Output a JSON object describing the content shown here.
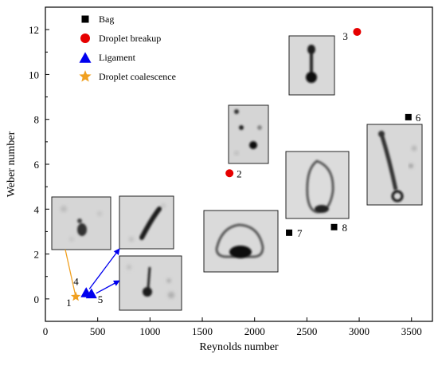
{
  "chart_data": {
    "type": "scatter",
    "title": "",
    "xlabel": "Reynolds number",
    "ylabel": "Weber number",
    "xlim": [
      0,
      3700
    ],
    "ylim": [
      -1,
      13
    ],
    "xticks": [
      0,
      500,
      1000,
      1500,
      2000,
      2500,
      3000,
      3500
    ],
    "yticks": [
      0,
      2,
      4,
      6,
      8,
      10,
      12
    ],
    "grid": false,
    "legend_position": "top-left",
    "series": [
      {
        "name": "Bag",
        "marker": "square",
        "color": "#000000",
        "points": [
          {
            "label": "6",
            "x": 3470,
            "y": 8.1
          },
          {
            "label": "7",
            "x": 2330,
            "y": 2.95
          },
          {
            "label": "8",
            "x": 2760,
            "y": 3.2
          }
        ]
      },
      {
        "name": "Droplet breakup",
        "marker": "circle",
        "color": "#e60000",
        "points": [
          {
            "label": "2",
            "x": 1760,
            "y": 5.6
          },
          {
            "label": "3",
            "x": 2980,
            "y": 11.9
          }
        ]
      },
      {
        "name": "Ligament",
        "marker": "triangle",
        "color": "#0000ee",
        "points": [
          {
            "label": "4",
            "x": 390,
            "y": 0.3
          },
          {
            "label": "5",
            "x": 440,
            "y": 0.25
          }
        ]
      },
      {
        "name": "Droplet coalescence",
        "marker": "star",
        "color": "#f0a020",
        "points": [
          {
            "label": "1",
            "x": 290,
            "y": 0.1
          }
        ]
      }
    ]
  }
}
